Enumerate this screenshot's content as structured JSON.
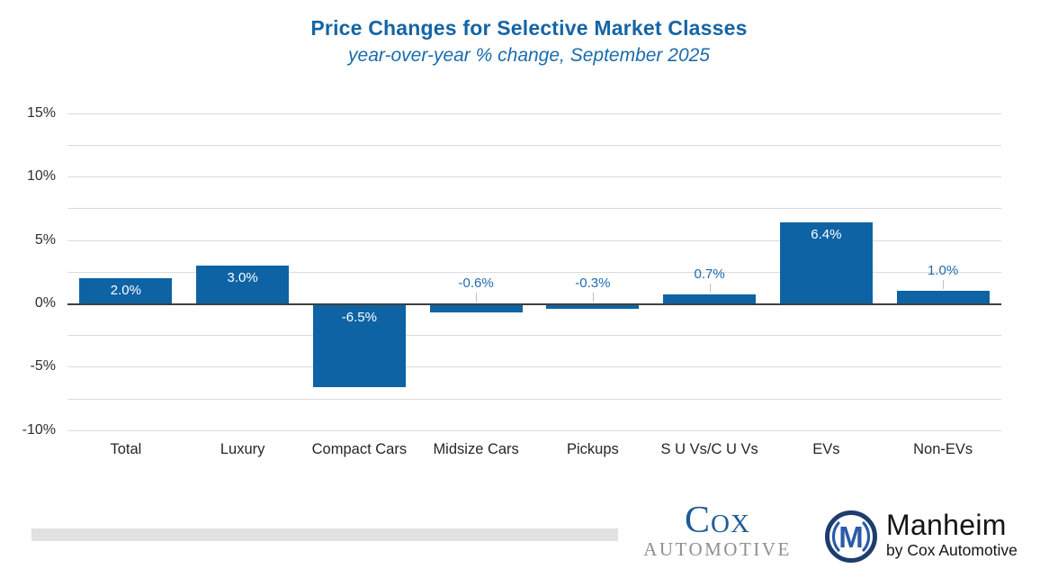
{
  "header": {
    "title": "Price Changes for Selective Market Classes",
    "subtitle": "year-over-year % change, September 2025"
  },
  "chart_data": {
    "type": "bar",
    "title": "Price Changes for Selective Market Classes",
    "subtitle": "year-over-year % change, September 2025",
    "categories": [
      "Total",
      "Luxury",
      "Compact Cars",
      "Midsize Cars",
      "Pickups",
      "S U Vs/C U Vs",
      "EVs",
      "Non-EVs"
    ],
    "values": [
      2.0,
      3.0,
      -6.5,
      -0.6,
      -0.3,
      0.7,
      6.4,
      1.0
    ],
    "bar_labels": [
      "2.0%",
      "3.0%",
      "-6.5%",
      "-0.6%",
      "-0.3%",
      "0.7%",
      "6.4%",
      "1.0%"
    ],
    "label_placement": [
      "inside",
      "inside",
      "inside",
      "outside",
      "outside",
      "outside",
      "inside",
      "outside"
    ],
    "xlabel": "",
    "ylabel": "",
    "ylim": [
      -10,
      15
    ],
    "y_tick_values": [
      15,
      10,
      5,
      0,
      -5,
      -10
    ],
    "y_tick_labels": [
      "15%",
      "10%",
      "5%",
      "0%",
      "-5%",
      "-10%"
    ],
    "gridline_step": 2.5,
    "grid": true,
    "legend": false,
    "colors": {
      "bar": "#0E63A5",
      "inside_label": "#FFFFFF",
      "outside_label": "#1E6BAD",
      "axis_line": "#3F3F3F",
      "gridline": "#DADADA",
      "title": "#1565A4",
      "subtitle": "#1A6CAD"
    }
  },
  "footer": {
    "cox_logo": {
      "line1": "Cox",
      "line2": "Automotive"
    },
    "manheim_logo": {
      "badge_letter": "M",
      "name": "Manheim",
      "tagline": "by Cox Automotive"
    }
  }
}
